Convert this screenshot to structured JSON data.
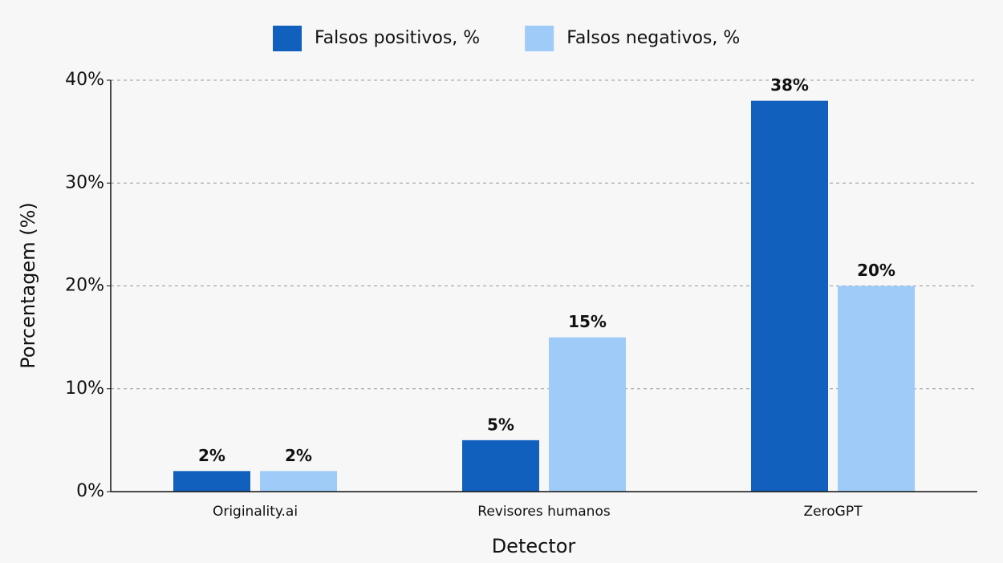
{
  "chart_data": {
    "type": "bar",
    "categories": [
      "Originality.ai",
      "Revisores humanos",
      "ZeroGPT"
    ],
    "series": [
      {
        "name": "Falsos positivos, %",
        "color": "#1160be",
        "values": [
          2,
          5,
          38
        ],
        "value_labels": [
          "2%",
          "5%",
          "38%"
        ]
      },
      {
        "name": "Falsos negativos, %",
        "color": "#9ecbf8",
        "values": [
          2,
          15,
          20
        ],
        "value_labels": [
          "2%",
          "15%",
          "20%"
        ]
      }
    ],
    "xlabel": "Detector",
    "ylabel": "Porcentagem (%)",
    "ylim": [
      0,
      40
    ],
    "yticks": [
      {
        "value": 0,
        "label": "0%"
      },
      {
        "value": 10,
        "label": "10%"
      },
      {
        "value": 20,
        "label": "20%"
      },
      {
        "value": 30,
        "label": "30%"
      },
      {
        "value": 40,
        "label": "40%"
      }
    ],
    "grid": true,
    "legend": "top"
  }
}
